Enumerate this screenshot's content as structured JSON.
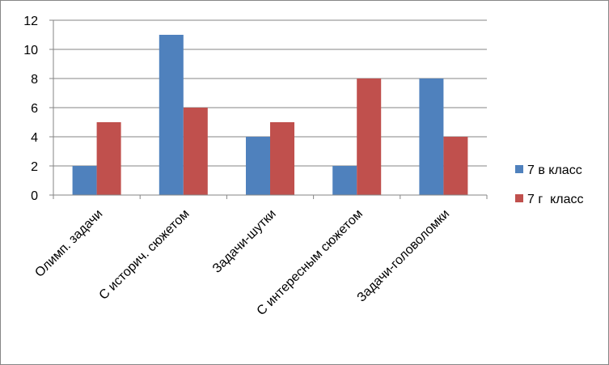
{
  "chart_data": {
    "type": "bar",
    "title": "",
    "xlabel": "",
    "ylabel": "",
    "categories": [
      "Олимп. задачи",
      "С историч. сюжетом",
      "Задачи-шутки",
      "С интересным сюжетом",
      "Задачи-головоломки"
    ],
    "series": [
      {
        "name": "7 в класс",
        "values": [
          2,
          11,
          4,
          2,
          8
        ],
        "color": "#4F81BD"
      },
      {
        "name": "7 г  класс",
        "values": [
          5,
          6,
          5,
          8,
          4
        ],
        "color": "#C0504D"
      }
    ],
    "ylim": [
      0,
      12
    ],
    "yticks": [
      "0",
      "2",
      "4",
      "6",
      "8",
      "10",
      "12"
    ],
    "grid": true,
    "legend_position": "right"
  }
}
